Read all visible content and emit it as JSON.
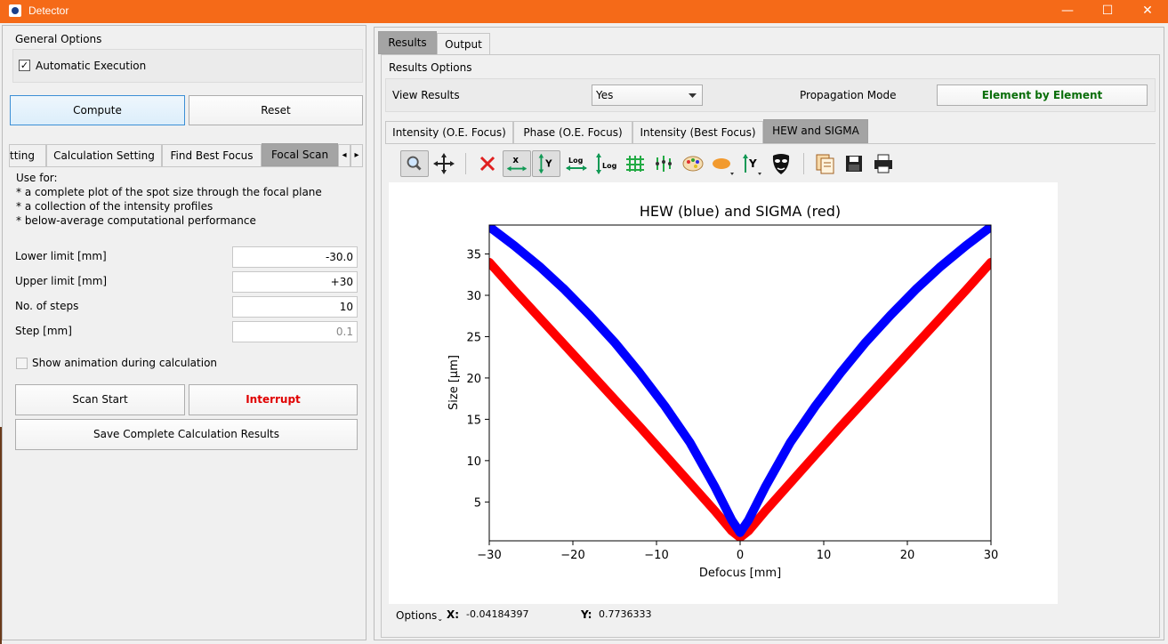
{
  "window": {
    "title": "Detector",
    "min_icon": "—",
    "max_icon": "☐",
    "close_icon": "✕"
  },
  "left": {
    "general_options": "General Options",
    "automatic_execution": "Automatic Execution",
    "automatic_checked": "✓",
    "compute_label": "Compute",
    "reset_label": "Reset",
    "tabs": [
      "tting",
      "Calculation Setting",
      "Find Best Focus",
      "Focal Scan"
    ],
    "tab_scroll_left": "◂",
    "tab_scroll_right": "▸",
    "use_for": [
      "Use for:",
      "* a complete plot of the spot size through the focal plane",
      "* a collection of the intensity profiles",
      "* below-average computational performance"
    ],
    "fields": [
      {
        "label": "Lower limit [mm]",
        "value": "-30.0"
      },
      {
        "label": "Upper limit [mm]",
        "value": "+30"
      },
      {
        "label": "No. of steps",
        "value": "10"
      },
      {
        "label": "Step [mm]",
        "value": "0.1"
      }
    ],
    "show_animation": "Show animation during calculation",
    "scan_start": "Scan Start",
    "interrupt": "Interrupt",
    "save_results": "Save Complete Calculation Results"
  },
  "right": {
    "tabs": [
      "Results",
      "Output"
    ],
    "results_options": "Results Options",
    "view_results_label": "View Results",
    "view_results_value": "Yes",
    "propagation_mode_label": "Propagation Mode",
    "propagation_mode_value": "Element by Element",
    "plot_tabs": [
      "Intensity (O.E. Focus)",
      "Phase (O.E. Focus)",
      "Intensity (Best Focus)",
      "HEW and SIGMA"
    ],
    "toolbar_icons": [
      "zoom-icon",
      "pan-icon",
      "clear-icon",
      "autoscale-x-icon",
      "autoscale-y-icon",
      "log-x-icon",
      "log-y-icon",
      "grid-icon",
      "curve-style-icon",
      "colormap-icon",
      "symbol-icon",
      "y-axis-icon",
      "mask-icon",
      "copy-icon",
      "save-icon",
      "print-icon"
    ],
    "options_label": "Options",
    "x_label": "X:",
    "x_value": "-0.04184397",
    "y_label": "Y:",
    "y_value": "0.7736333"
  },
  "colors": {
    "accent": "#f56a18",
    "hew": "#0000ff",
    "sigma": "#ff0000",
    "interrupt": "#e00000",
    "propagation": "#0a6e0a"
  },
  "chart_data": {
    "type": "line",
    "title": "HEW (blue) and SIGMA (red)",
    "xlabel": "Defocus [mm]",
    "ylabel": "Size [µm]",
    "xlim": [
      -30,
      30
    ],
    "ylim": [
      0.3,
      38.5
    ],
    "xticks": [
      -30,
      -20,
      -10,
      0,
      10,
      20,
      30
    ],
    "xtick_labels": [
      "−30",
      "−20",
      "−10",
      "0",
      "10",
      "20",
      "30"
    ],
    "yticks": [
      5,
      10,
      15,
      20,
      25,
      30,
      35
    ],
    "series": [
      {
        "name": "HEW",
        "color": "#0000ff",
        "x": [
          -30,
          -27,
          -24,
          -21,
          -18,
          -15,
          -12,
          -9,
          -6,
          -3,
          -1,
          0,
          1,
          3,
          6,
          9,
          12,
          15,
          18,
          21,
          24,
          27,
          30
        ],
        "y": [
          38.3,
          36.0,
          33.5,
          30.7,
          27.6,
          24.3,
          20.6,
          16.6,
          12.2,
          6.8,
          2.8,
          1.3,
          2.8,
          6.8,
          12.2,
          16.6,
          20.6,
          24.3,
          27.6,
          30.7,
          33.5,
          36.0,
          38.3
        ]
      },
      {
        "name": "SIGMA",
        "color": "#ff0000",
        "x": [
          -30,
          -27,
          -24,
          -21,
          -18,
          -15,
          -12,
          -9,
          -6,
          -3,
          -1,
          0,
          1,
          3,
          6,
          9,
          12,
          15,
          18,
          21,
          24,
          27,
          30
        ],
        "y": [
          34.0,
          30.6,
          27.3,
          24.0,
          20.7,
          17.4,
          14.1,
          10.7,
          7.3,
          3.9,
          1.5,
          0.7,
          1.5,
          3.9,
          7.3,
          10.7,
          14.1,
          17.4,
          20.7,
          24.0,
          27.3,
          30.6,
          34.0
        ]
      }
    ]
  }
}
